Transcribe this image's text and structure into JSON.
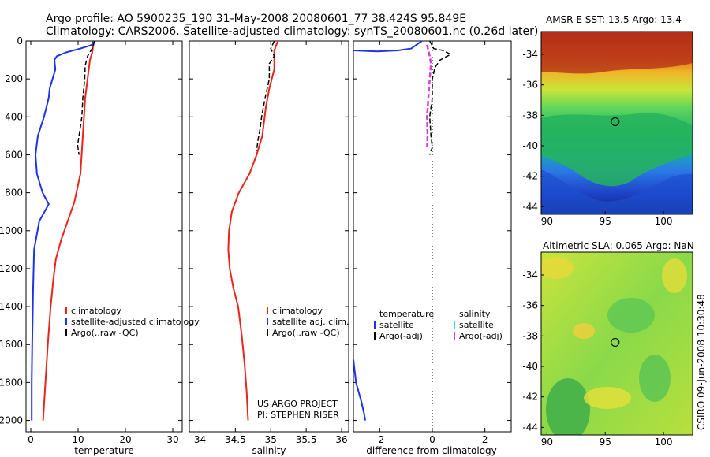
{
  "title_line1": "Argo profile: AO 5900235_190 31-May-2008 20080601_77 38.424S 95.849E",
  "title_line2": "Climatology: CARS2006. Satellite-adjusted climatology: synTS_20080601.nc (0.26d later)",
  "side_label": "CSIRO 09-Jun-2008 10:30:48",
  "colors": {
    "climatology": "#e8251d",
    "satellite": "#1f33e6",
    "argo": "#000000",
    "argo_adj": "#d43fd4",
    "satellite_sal": "#33d6d6"
  },
  "chart_data": [
    {
      "type": "line",
      "xlabel": "temperature",
      "xticks": [
        "0",
        "10",
        "20",
        "30"
      ],
      "yticks": [
        "0",
        "200",
        "400",
        "600",
        "800",
        "1000",
        "1200",
        "1400",
        "1600",
        "1800",
        "2000"
      ],
      "xlim": [
        -1,
        32
      ],
      "ylim": [
        0,
        2060
      ],
      "legend": [
        "climatology",
        "satellite-adjusted climatology",
        "Argo(..raw -QC)"
      ],
      "legend_placement": "lower-right",
      "series": [
        {
          "name": "climatology",
          "points": [
            [
              13.5,
              0
            ],
            [
              13.2,
              20
            ],
            [
              13,
              60
            ],
            [
              12.5,
              100
            ],
            [
              11.5,
              300
            ],
            [
              11,
              500
            ],
            [
              10.5,
              700
            ],
            [
              9.2,
              850
            ],
            [
              7.8,
              950
            ],
            [
              6.4,
              1050
            ],
            [
              5.3,
              1150
            ],
            [
              4.8,
              1250
            ],
            [
              4.2,
              1400
            ],
            [
              3.6,
              1600
            ],
            [
              3.1,
              1800
            ],
            [
              2.6,
              2000
            ]
          ]
        },
        {
          "name": "satellite-adjusted climatology",
          "points": [
            [
              13,
              0
            ],
            [
              13,
              20
            ],
            [
              10.5,
              40
            ],
            [
              7.5,
              60
            ],
            [
              5.5,
              80
            ],
            [
              5,
              100
            ],
            [
              5.2,
              150
            ],
            [
              4,
              250
            ],
            [
              3.8,
              300
            ],
            [
              2.8,
              400
            ],
            [
              1.5,
              500
            ],
            [
              1,
              600
            ],
            [
              1.3,
              700
            ],
            [
              2.5,
              800
            ],
            [
              3.8,
              860
            ],
            [
              1.8,
              950
            ],
            [
              0.7,
              1100
            ],
            [
              0.5,
              1300
            ],
            [
              0.3,
              1600
            ],
            [
              0.2,
              1800
            ],
            [
              0.2,
              2000
            ]
          ]
        },
        {
          "name": "Argo(..raw -QC)",
          "points": [
            [
              13.4,
              0
            ],
            [
              13.2,
              30
            ],
            [
              12,
              80
            ],
            [
              11.5,
              130
            ],
            [
              11.4,
              200
            ],
            [
              11,
              300
            ],
            [
              10.8,
              400
            ],
            [
              10.2,
              500
            ],
            [
              9.9,
              550
            ],
            [
              10.2,
              600
            ]
          ]
        }
      ]
    },
    {
      "type": "line",
      "xlabel": "salinity",
      "xticks": [
        "34",
        "34.5",
        "35",
        "35.5",
        "36"
      ],
      "yticks": [],
      "xlim": [
        33.85,
        36.1
      ],
      "ylim": [
        0,
        2060
      ],
      "legend": [
        "climatology",
        "satellite adj. clim.",
        "Argo(..raw -QC)"
      ],
      "legend_placement": "lower-right",
      "annotation": [
        "US ARGO PROJECT",
        "PI: STEPHEN RISER"
      ],
      "series": [
        {
          "name": "climatology",
          "points": [
            [
              35.1,
              0
            ],
            [
              35.05,
              50
            ],
            [
              35.05,
              150
            ],
            [
              34.98,
              250
            ],
            [
              34.93,
              350
            ],
            [
              34.88,
              500
            ],
            [
              34.8,
              600
            ],
            [
              34.7,
              700
            ],
            [
              34.55,
              800
            ],
            [
              34.45,
              900
            ],
            [
              34.41,
              1000
            ],
            [
              34.4,
              1100
            ],
            [
              34.42,
              1200
            ],
            [
              34.47,
              1300
            ],
            [
              34.54,
              1400
            ],
            [
              34.59,
              1550
            ],
            [
              34.63,
              1700
            ],
            [
              34.66,
              1850
            ],
            [
              34.68,
              2000
            ]
          ]
        },
        {
          "name": "Argo(..raw -QC)",
          "points": [
            [
              35.05,
              0
            ],
            [
              35,
              40
            ],
            [
              35.05,
              80
            ],
            [
              34.98,
              120
            ],
            [
              34.98,
              200
            ],
            [
              34.92,
              300
            ],
            [
              34.87,
              400
            ],
            [
              34.85,
              460
            ],
            [
              34.82,
              520
            ],
            [
              34.8,
              580
            ]
          ]
        }
      ]
    },
    {
      "type": "line",
      "xlabel": "difference from climatology",
      "xticks": [
        "-2",
        "0",
        "2"
      ],
      "yticks": [],
      "xlim": [
        -3,
        3
      ],
      "ylim": [
        0,
        2060
      ],
      "legend_headers": [
        "temperature",
        "salinity"
      ],
      "legend": [
        "satellite",
        "Argo(-adj)",
        "satellite",
        "Argo(-adj)"
      ],
      "legend_placement": "lower-middle",
      "series": [
        {
          "name": "temperature satellite",
          "points": [
            [
              -3,
              50
            ],
            [
              -2.1,
              55
            ],
            [
              -1.3,
              50
            ],
            [
              -0.8,
              40
            ],
            [
              -0.6,
              20
            ],
            [
              -0.4,
              0
            ]
          ]
        },
        {
          "name": "temperature satellite",
          "points": [
            [
              -3,
              1680
            ],
            [
              -2.9,
              1800
            ],
            [
              -2.7,
              1900
            ],
            [
              -2.6,
              1960
            ],
            [
              -2.55,
              2000
            ]
          ]
        },
        {
          "name": "Argo(-adj)",
          "points": [
            [
              -0.1,
              0
            ],
            [
              0.05,
              40
            ],
            [
              0.4,
              50
            ],
            [
              0.7,
              70
            ],
            [
              0.3,
              100
            ],
            [
              0.1,
              140
            ],
            [
              0,
              200
            ],
            [
              0,
              300
            ],
            [
              -0.1,
              400
            ],
            [
              -0.05,
              500
            ],
            [
              0,
              560
            ],
            [
              -0.1,
              600
            ]
          ]
        },
        {
          "name": "salinity Argo(-adj)",
          "points": [
            [
              -0.2,
              20
            ],
            [
              -0.1,
              80
            ],
            [
              -0.05,
              120
            ],
            [
              -0.1,
              200
            ],
            [
              -0.15,
              300
            ],
            [
              -0.2,
              400
            ],
            [
              -0.18,
              500
            ],
            [
              -0.2,
              560
            ]
          ]
        }
      ]
    },
    {
      "type": "heatmap",
      "title": "AMSR-E SST: 13.5 Argo: 13.4",
      "xticks": [
        "90",
        "95",
        "100"
      ],
      "yticks": [
        "-34",
        "-36",
        "-38",
        "-40",
        "-42",
        "-44"
      ],
      "xlim": [
        89.5,
        102.5
      ],
      "ylim": [
        -44.5,
        -32.5
      ],
      "marker": [
        95.85,
        -38.42
      ]
    },
    {
      "type": "heatmap",
      "title": "Altimetric SLA: 0.065 Argo: NaN",
      "xticks": [
        "90",
        "95",
        "100"
      ],
      "yticks": [
        "-34",
        "-36",
        "-38",
        "-40",
        "-42",
        "-44"
      ],
      "xlim": [
        89.5,
        102.5
      ],
      "ylim": [
        -44.5,
        -32.5
      ],
      "marker": [
        95.85,
        -38.42
      ]
    }
  ]
}
